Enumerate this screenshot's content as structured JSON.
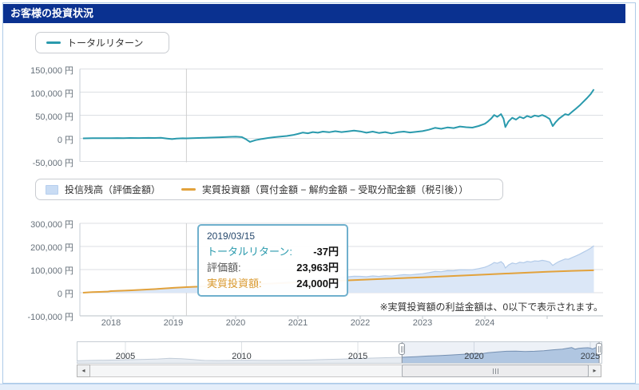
{
  "header": {
    "title": "お客様の投資状況"
  },
  "note": "※実質投資額の利益金額は、0以下で表示されます。",
  "colors": {
    "header_bar": "#0a3190",
    "total_return_line": "#2a9aad",
    "invest_line": "#e2a23c",
    "balance_area_fill": "#dbe7f7",
    "balance_area_edge": "#b3cbe9",
    "tooltip_border": "#6fb0cd",
    "nav_selected_fill": "#b0c6e1",
    "nav_selected_edge": "#7590b2",
    "nav_unselected_fill": "#e7ecf2",
    "nav_unselected_edge": "#c2ccd8"
  },
  "legend1": {
    "label": "トータルリターン"
  },
  "legend2": {
    "balance_label": "投信残高（評価金額）",
    "invest_label": "実質投資額（買付金額 − 解約金額 − 受取分配金額（税引後））"
  },
  "tooltip": {
    "date": "2019/03/15",
    "return_label": "トータルリターン:",
    "return_value": "-37円",
    "eval_label": "評価額:",
    "eval_value": "23,963円",
    "invest_label": "実質投資額:",
    "invest_value": "24,000円"
  },
  "scrollbar": {
    "left_arrow": "◂",
    "right_arrow": "▸"
  },
  "chart_data": [
    {
      "type": "line",
      "name": "トータルリターン",
      "x_range": [
        2017.5,
        2025.8
      ],
      "ylim": [
        -50000,
        150000
      ],
      "y_ticks": [
        {
          "v": 150000,
          "label": "150,000 円"
        },
        {
          "v": 100000,
          "label": "100,000 円"
        },
        {
          "v": 50000,
          "label": "50,000 円"
        },
        {
          "v": 0,
          "label": "0 円"
        },
        {
          "v": -50000,
          "label": "-50,000 円"
        }
      ],
      "crosshair_x": 2019.21,
      "points": [
        [
          2017.55,
          0
        ],
        [
          2017.7,
          300
        ],
        [
          2017.85,
          500
        ],
        [
          2018.0,
          400
        ],
        [
          2018.1,
          700
        ],
        [
          2018.2,
          500
        ],
        [
          2018.3,
          900
        ],
        [
          2018.45,
          700
        ],
        [
          2018.6,
          1100
        ],
        [
          2018.7,
          800
        ],
        [
          2018.8,
          1200
        ],
        [
          2018.9,
          -300
        ],
        [
          2018.98,
          -1600
        ],
        [
          2019.05,
          -500
        ],
        [
          2019.15,
          200
        ],
        [
          2019.21,
          -37
        ],
        [
          2019.3,
          500
        ],
        [
          2019.45,
          1000
        ],
        [
          2019.6,
          1700
        ],
        [
          2019.75,
          2500
        ],
        [
          2019.9,
          3300
        ],
        [
          2020.0,
          3700
        ],
        [
          2020.1,
          2800
        ],
        [
          2020.17,
          -2200
        ],
        [
          2020.23,
          -7600
        ],
        [
          2020.32,
          -3800
        ],
        [
          2020.42,
          -1200
        ],
        [
          2020.52,
          900
        ],
        [
          2020.62,
          2600
        ],
        [
          2020.72,
          3800
        ],
        [
          2020.82,
          5200
        ],
        [
          2020.92,
          7200
        ],
        [
          2021.0,
          9600
        ],
        [
          2021.08,
          12600
        ],
        [
          2021.16,
          11000
        ],
        [
          2021.24,
          13600
        ],
        [
          2021.32,
          12200
        ],
        [
          2021.4,
          14600
        ],
        [
          2021.5,
          13200
        ],
        [
          2021.6,
          15600
        ],
        [
          2021.7,
          13700
        ],
        [
          2021.8,
          15200
        ],
        [
          2021.9,
          16700
        ],
        [
          2022.0,
          15200
        ],
        [
          2022.1,
          12200
        ],
        [
          2022.2,
          14700
        ],
        [
          2022.3,
          11700
        ],
        [
          2022.4,
          13700
        ],
        [
          2022.5,
          10700
        ],
        [
          2022.6,
          13200
        ],
        [
          2022.7,
          14700
        ],
        [
          2022.8,
          12700
        ],
        [
          2022.9,
          14200
        ],
        [
          2023.0,
          15700
        ],
        [
          2023.1,
          18700
        ],
        [
          2023.2,
          22700
        ],
        [
          2023.3,
          20700
        ],
        [
          2023.4,
          23700
        ],
        [
          2023.5,
          22200
        ],
        [
          2023.6,
          25700
        ],
        [
          2023.7,
          24200
        ],
        [
          2023.8,
          23200
        ],
        [
          2023.9,
          26700
        ],
        [
          2024.0,
          31500
        ],
        [
          2024.05,
          36500
        ],
        [
          2024.1,
          42500
        ],
        [
          2024.15,
          50500
        ],
        [
          2024.2,
          46500
        ],
        [
          2024.26,
          52500
        ],
        [
          2024.3,
          42500
        ],
        [
          2024.33,
          24500
        ],
        [
          2024.38,
          36500
        ],
        [
          2024.44,
          44500
        ],
        [
          2024.5,
          40500
        ],
        [
          2024.56,
          46500
        ],
        [
          2024.62,
          43500
        ],
        [
          2024.68,
          48500
        ],
        [
          2024.74,
          45500
        ],
        [
          2024.8,
          49500
        ],
        [
          2024.86,
          47500
        ],
        [
          2024.92,
          50500
        ],
        [
          2024.98,
          47000
        ],
        [
          2025.04,
          42000
        ],
        [
          2025.09,
          26500
        ],
        [
          2025.14,
          35500
        ],
        [
          2025.19,
          42500
        ],
        [
          2025.24,
          47500
        ],
        [
          2025.29,
          52500
        ],
        [
          2025.34,
          50500
        ],
        [
          2025.4,
          57500
        ],
        [
          2025.46,
          64000
        ],
        [
          2025.52,
          71000
        ],
        [
          2025.58,
          79000
        ],
        [
          2025.64,
          87000
        ],
        [
          2025.7,
          96000
        ],
        [
          2025.75,
          106000
        ]
      ]
    },
    {
      "type": "area+line",
      "x_range": [
        2017.5,
        2025.8
      ],
      "ylim": [
        -100000,
        300000
      ],
      "y_ticks": [
        {
          "v": 300000,
          "label": "300,000 円"
        },
        {
          "v": 200000,
          "label": "200,000 円"
        },
        {
          "v": 100000,
          "label": "100,000 円"
        },
        {
          "v": 0,
          "label": "0 円"
        },
        {
          "v": -100000,
          "label": "-100,000 円"
        }
      ],
      "x_ticks": [
        {
          "t": 2018,
          "label": "2018"
        },
        {
          "t": 2019,
          "label": "2019"
        },
        {
          "t": 2020,
          "label": "2020"
        },
        {
          "t": 2021,
          "label": "2021"
        },
        {
          "t": 2022,
          "label": "2022"
        },
        {
          "t": 2023,
          "label": "2023"
        },
        {
          "t": 2024,
          "label": "2024"
        },
        {
          "t": 2025,
          "label": ""
        }
      ],
      "crosshair_x": 2019.21,
      "series": [
        {
          "name": "投信残高（評価金額）",
          "type": "area",
          "derived": "invest_plus_return"
        },
        {
          "name": "実質投資額",
          "type": "line",
          "points": [
            [
              2017.55,
              0
            ],
            [
              2017.7,
              2500
            ],
            [
              2017.95,
              5000
            ],
            [
              2018.0,
              7000
            ],
            [
              2018.3,
              10000
            ],
            [
              2018.7,
              15500
            ],
            [
              2019.0,
              21000
            ],
            [
              2019.21,
              24000
            ],
            [
              2019.6,
              28500
            ],
            [
              2020.0,
              33500
            ],
            [
              2020.5,
              39000
            ],
            [
              2021.0,
              44500
            ],
            [
              2021.5,
              50000
            ],
            [
              2022.0,
              55500
            ],
            [
              2022.5,
              61000
            ],
            [
              2023.0,
              66500
            ],
            [
              2023.5,
              72500
            ],
            [
              2024.0,
              78500
            ],
            [
              2024.5,
              84500
            ],
            [
              2025.0,
              90500
            ],
            [
              2025.4,
              94500
            ],
            [
              2025.75,
              97000
            ]
          ]
        }
      ]
    },
    {
      "type": "navigator",
      "x_range": [
        2002.9,
        2025.6
      ],
      "x_ticks": [
        {
          "t": 2005,
          "label": "2005"
        },
        {
          "t": 2010,
          "label": "2010"
        },
        {
          "t": 2015,
          "label": "2015"
        },
        {
          "t": 2020,
          "label": "2020"
        },
        {
          "t": 2025,
          "label": "2025"
        }
      ],
      "selected_range": [
        2016.9,
        2025.38
      ],
      "height_fractions": [
        [
          2002.9,
          0.1
        ],
        [
          2003.5,
          0.12
        ],
        [
          2004.2,
          0.13
        ],
        [
          2005.0,
          0.15
        ],
        [
          2005.8,
          0.17
        ],
        [
          2006.4,
          0.19
        ],
        [
          2006.9,
          0.22
        ],
        [
          2007.4,
          0.2
        ],
        [
          2007.9,
          0.16
        ],
        [
          2008.4,
          0.12
        ],
        [
          2009.0,
          0.11
        ],
        [
          2009.6,
          0.12
        ],
        [
          2010.2,
          0.13
        ],
        [
          2010.8,
          0.12
        ],
        [
          2011.5,
          0.12
        ],
        [
          2012.2,
          0.13
        ],
        [
          2012.9,
          0.14
        ],
        [
          2013.6,
          0.16
        ],
        [
          2014.3,
          0.18
        ],
        [
          2015.0,
          0.21
        ],
        [
          2015.6,
          0.23
        ],
        [
          2016.2,
          0.25
        ],
        [
          2016.9,
          0.27
        ],
        [
          2017.5,
          0.3
        ],
        [
          2018.0,
          0.33
        ],
        [
          2018.5,
          0.35
        ],
        [
          2019.0,
          0.38
        ],
        [
          2019.5,
          0.41
        ],
        [
          2019.8,
          0.43
        ],
        [
          2020.1,
          0.46
        ],
        [
          2020.3,
          0.44
        ],
        [
          2020.6,
          0.49
        ],
        [
          2021.0,
          0.53
        ],
        [
          2021.4,
          0.56
        ],
        [
          2021.8,
          0.57
        ],
        [
          2022.2,
          0.55
        ],
        [
          2022.6,
          0.56
        ],
        [
          2023.0,
          0.59
        ],
        [
          2023.4,
          0.63
        ],
        [
          2023.8,
          0.66
        ],
        [
          2024.0,
          0.7
        ],
        [
          2024.2,
          0.74
        ],
        [
          2024.35,
          0.66
        ],
        [
          2024.5,
          0.7
        ],
        [
          2024.7,
          0.72
        ],
        [
          2024.9,
          0.73
        ],
        [
          2025.0,
          0.71
        ],
        [
          2025.1,
          0.67
        ],
        [
          2025.2,
          0.72
        ],
        [
          2025.3,
          0.76
        ],
        [
          2025.4,
          0.85
        ],
        [
          2025.5,
          1.0
        ]
      ]
    }
  ]
}
